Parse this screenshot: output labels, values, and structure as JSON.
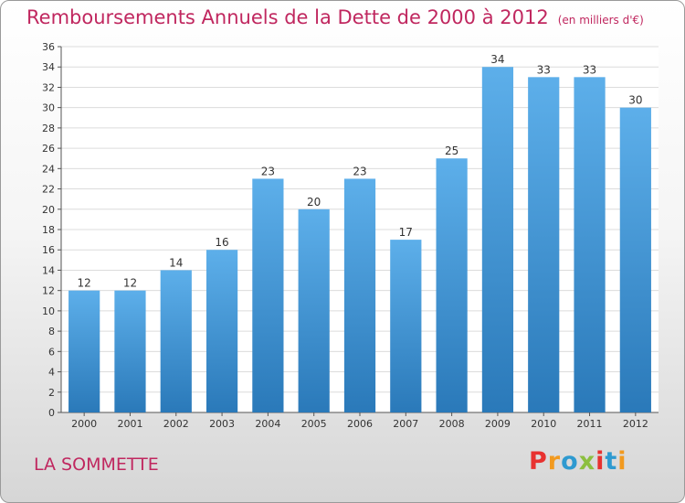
{
  "header": {
    "title": "Remboursements Annuels de la Dette de 2000 à 2012",
    "unit": "(en milliers d'€)"
  },
  "footer": {
    "commune": "LA SOMMETTE",
    "brand": "Proxiti"
  },
  "colors": {
    "title": "#c0275f",
    "bar_top": "#5dafea",
    "bar_bottom": "#2a79b9",
    "grid": "#dcdcdc",
    "brand_letters": [
      "#e8312f",
      "#f29a1f",
      "#2e9ad0",
      "#8cbf3f",
      "#e8312f",
      "#2e9ad0",
      "#f29a1f"
    ]
  },
  "chart_data": {
    "type": "bar",
    "title": "Remboursements Annuels de la Dette de 2000 à 2012",
    "subtitle": "(en milliers d'€)",
    "xlabel": "",
    "ylabel": "",
    "categories": [
      "2000",
      "2001",
      "2002",
      "2003",
      "2004",
      "2005",
      "2006",
      "2007",
      "2008",
      "2009",
      "2010",
      "2011",
      "2012"
    ],
    "values": [
      12,
      12,
      14,
      16,
      23,
      20,
      23,
      17,
      25,
      34,
      33,
      33,
      30
    ],
    "ylim": [
      0,
      36
    ],
    "yticks": [
      0,
      2,
      4,
      6,
      8,
      10,
      12,
      14,
      16,
      18,
      20,
      22,
      24,
      26,
      28,
      30,
      32,
      34,
      36
    ],
    "grid": true,
    "data_labels": true
  }
}
